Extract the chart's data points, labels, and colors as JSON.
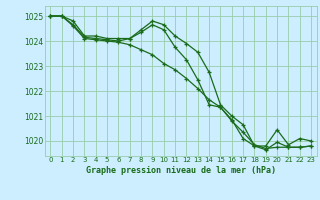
{
  "title": "Graphe pression niveau de la mer (hPa)",
  "bg_color": "#cceeff",
  "grid_color": "#99ccaa",
  "line_color": "#1a6b1a",
  "ylim": [
    1019.4,
    1025.4
  ],
  "xlim": [
    -0.5,
    23.5
  ],
  "yticks": [
    1020,
    1021,
    1022,
    1023,
    1024,
    1025
  ],
  "xtick_labels": [
    "0",
    "1",
    "2",
    "3",
    "4",
    "5",
    "6",
    "7",
    "8",
    "9",
    "10",
    "11",
    "12",
    "13",
    "14",
    "15",
    "16",
    "17",
    "18",
    "19",
    "20",
    "21",
    "22",
    "23"
  ],
  "series1": [
    1025.0,
    1025.0,
    1024.8,
    1024.2,
    1024.2,
    1024.1,
    1024.1,
    1024.1,
    1024.45,
    1024.8,
    1024.65,
    1024.2,
    1023.9,
    1023.55,
    1022.75,
    1021.45,
    1021.0,
    1020.65,
    1019.8,
    1019.8,
    1020.45,
    1019.85,
    1020.1,
    1020.0
  ],
  "series2": [
    1025.0,
    1025.0,
    1024.65,
    1024.15,
    1024.1,
    1024.05,
    1024.0,
    1024.1,
    1024.35,
    1024.65,
    1024.45,
    1023.75,
    1023.25,
    1022.45,
    1021.45,
    1021.35,
    1020.85,
    1020.1,
    1019.8,
    1019.65,
    1019.95,
    1019.75,
    1019.75,
    1019.8
  ],
  "series3": [
    1025.0,
    1025.0,
    1024.6,
    1024.1,
    1024.05,
    1024.0,
    1023.95,
    1023.85,
    1023.65,
    1023.45,
    1023.1,
    1022.85,
    1022.5,
    1022.1,
    1021.65,
    1021.35,
    1020.8,
    1020.35,
    1019.85,
    1019.7,
    1019.75,
    1019.75,
    1019.75,
    1019.8
  ]
}
